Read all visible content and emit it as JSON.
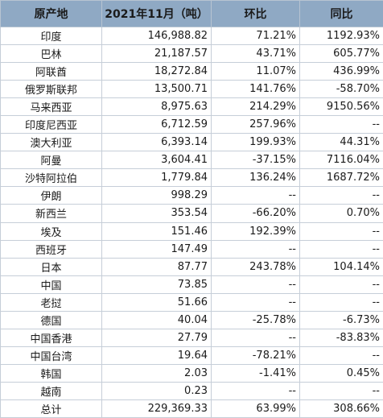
{
  "headers": [
    "原产地",
    "2021年11月（吨）",
    "环比",
    "同比"
  ],
  "rows": [
    [
      "印度",
      "146,988.82",
      "71.21%",
      "1192.93%"
    ],
    [
      "巴林",
      "21,187.57",
      "43.71%",
      "605.77%"
    ],
    [
      "阿联酋",
      "18,272.84",
      "11.07%",
      "436.99%"
    ],
    [
      "俄罗斯联邦",
      "13,500.71",
      "141.76%",
      "-58.70%"
    ],
    [
      "马来西亚",
      "8,975.63",
      "214.29%",
      "9150.56%"
    ],
    [
      "印度尼西亚",
      "6,712.59",
      "257.96%",
      "--"
    ],
    [
      "澳大利亚",
      "6,393.14",
      "199.93%",
      "44.31%"
    ],
    [
      "阿曼",
      "3,604.41",
      "-37.15%",
      "7116.04%"
    ],
    [
      "沙特阿拉伯",
      "1,779.84",
      "136.24%",
      "1687.72%"
    ],
    [
      "伊朗",
      "998.29",
      "--",
      "--"
    ],
    [
      "新西兰",
      "353.54",
      "-66.20%",
      "0.70%"
    ],
    [
      "埃及",
      "151.46",
      "192.39%",
      "--"
    ],
    [
      "西班牙",
      "147.49",
      "--",
      "--"
    ],
    [
      "日本",
      "87.77",
      "243.78%",
      "104.14%"
    ],
    [
      "中国",
      "73.85",
      "--",
      "--"
    ],
    [
      "老挝",
      "51.66",
      "--",
      "--"
    ],
    [
      "德国",
      "40.04",
      "-25.78%",
      "-6.73%"
    ],
    [
      "中国香港",
      "27.79",
      "--",
      "-83.83%"
    ],
    [
      "中国台湾",
      "19.64",
      "-78.21%",
      "--"
    ],
    [
      "韩国",
      "2.03",
      "-1.41%",
      "0.45%"
    ],
    [
      "越南",
      "0.23",
      "--",
      "--"
    ],
    [
      "总计",
      "229,369.33",
      "63.99%",
      "308.66%"
    ]
  ]
}
